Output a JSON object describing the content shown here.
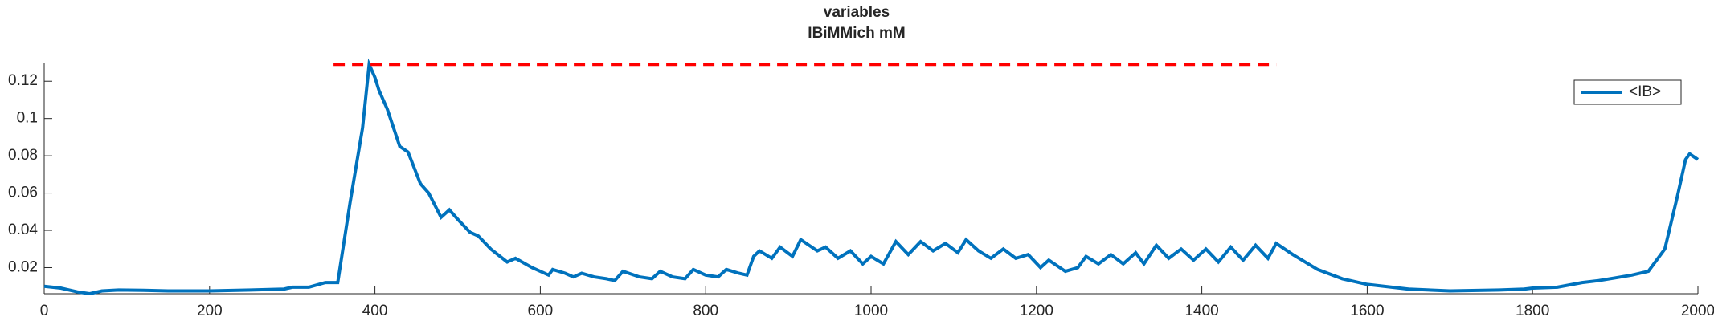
{
  "chart_data": {
    "type": "line",
    "title": "variables",
    "subtitle": "IBiMMich mM",
    "xlim": [
      0,
      2000
    ],
    "xticks": [
      0,
      200,
      400,
      600,
      800,
      1000,
      1200,
      1400,
      1600,
      1800,
      2000
    ],
    "ylim": [
      0.006,
      0.13
    ],
    "yticks": [
      0.02,
      0.04,
      0.06,
      0.08,
      0.1,
      0.12
    ],
    "legend": "top-right",
    "series": [
      {
        "name": "<IB>",
        "color": "#0072bd",
        "style": "solid",
        "x": [
          0,
          20,
          40,
          55,
          70,
          90,
          120,
          150,
          200,
          250,
          290,
          300,
          320,
          340,
          355,
          370,
          385,
          393,
          400,
          405,
          415,
          430,
          440,
          455,
          465,
          480,
          490,
          500,
          515,
          525,
          540,
          560,
          570,
          590,
          600,
          610,
          615,
          630,
          640,
          650,
          665,
          680,
          690,
          700,
          720,
          735,
          745,
          760,
          775,
          785,
          800,
          815,
          825,
          840,
          850,
          858,
          865,
          880,
          890,
          905,
          915,
          925,
          935,
          945,
          960,
          975,
          990,
          1000,
          1015,
          1030,
          1045,
          1060,
          1075,
          1090,
          1105,
          1115,
          1130,
          1145,
          1160,
          1175,
          1190,
          1205,
          1215,
          1235,
          1250,
          1260,
          1275,
          1290,
          1305,
          1320,
          1330,
          1345,
          1360,
          1375,
          1390,
          1405,
          1420,
          1435,
          1450,
          1465,
          1480,
          1490,
          1510,
          1540,
          1570,
          1600,
          1650,
          1700,
          1760,
          1790,
          1800,
          1830,
          1860,
          1880,
          1900,
          1920,
          1940,
          1960,
          1975,
          1985,
          1990,
          2000
        ],
        "values": [
          0.01,
          0.009,
          0.007,
          0.006,
          0.0075,
          0.008,
          0.0078,
          0.0075,
          0.0075,
          0.008,
          0.0085,
          0.0095,
          0.0095,
          0.012,
          0.012,
          0.055,
          0.095,
          0.129,
          0.122,
          0.115,
          0.105,
          0.085,
          0.082,
          0.065,
          0.06,
          0.047,
          0.051,
          0.046,
          0.039,
          0.037,
          0.03,
          0.023,
          0.025,
          0.02,
          0.018,
          0.016,
          0.019,
          0.017,
          0.015,
          0.017,
          0.015,
          0.014,
          0.013,
          0.018,
          0.015,
          0.014,
          0.018,
          0.015,
          0.014,
          0.019,
          0.016,
          0.015,
          0.019,
          0.017,
          0.016,
          0.026,
          0.029,
          0.025,
          0.031,
          0.026,
          0.035,
          0.032,
          0.029,
          0.031,
          0.025,
          0.029,
          0.022,
          0.026,
          0.022,
          0.034,
          0.027,
          0.034,
          0.029,
          0.033,
          0.028,
          0.035,
          0.029,
          0.025,
          0.03,
          0.025,
          0.027,
          0.02,
          0.024,
          0.018,
          0.02,
          0.026,
          0.022,
          0.027,
          0.022,
          0.028,
          0.022,
          0.032,
          0.025,
          0.03,
          0.024,
          0.03,
          0.023,
          0.031,
          0.024,
          0.032,
          0.025,
          0.033,
          0.027,
          0.019,
          0.014,
          0.011,
          0.0085,
          0.0075,
          0.008,
          0.0085,
          0.009,
          0.0095,
          0.012,
          0.013,
          0.0145,
          0.016,
          0.018,
          0.03,
          0.058,
          0.078,
          0.081,
          0.078
        ]
      },
      {
        "color": "#ff0000",
        "style": "dashed",
        "x": [
          350,
          1490
        ],
        "values": [
          0.129,
          0.129
        ]
      }
    ]
  }
}
